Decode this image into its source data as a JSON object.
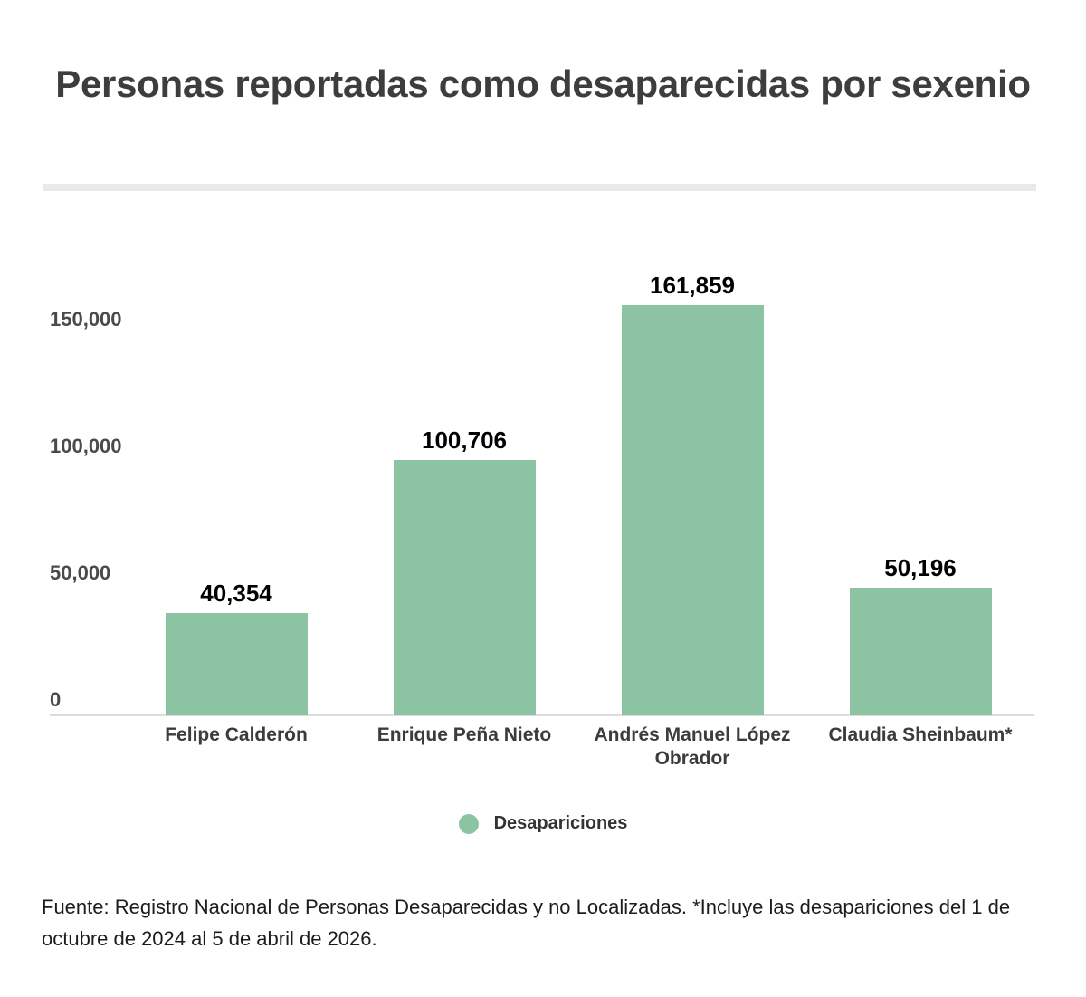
{
  "title": "Personas reportadas como desaparecidas por sexenio",
  "legend": {
    "label": "Desapariciones",
    "marker_color": "#8cc3a3"
  },
  "footer": {
    "text": "Fuente: Registro Nacional de Personas Desaparecidas y no Localizadas. *Incluye las desapariciones del 1 de octubre de 2024 al 5 de abril de 2026."
  },
  "colors": {
    "bar": "#8cc3a3",
    "axis_line": "#dcdcdc",
    "divider": "#e9e9e9",
    "title_text": "#3d3d3d",
    "value_label": "#000000",
    "tick_label": "#4a4a4a",
    "category_label": "#3c3c3c"
  },
  "chart_data": {
    "type": "bar",
    "title": "Personas reportadas como desaparecidas por sexenio",
    "categories": [
      "Felipe Calderón",
      "Enrique Peña Nieto",
      "Andrés Manuel López Obrador",
      "Claudia Sheinbaum*"
    ],
    "values": [
      40354,
      100706,
      161859,
      50196
    ],
    "value_labels": [
      "40,354",
      "100,706",
      "161,859",
      "50,196"
    ],
    "series": [
      {
        "name": "Desapariciones",
        "values": [
          40354,
          100706,
          161859,
          50196
        ]
      }
    ],
    "xlabel": "",
    "ylabel": "",
    "ylim": [
      0,
      175000
    ],
    "yticks": [
      0,
      50000,
      100000,
      150000
    ],
    "ytick_labels": [
      "0",
      "50,000",
      "100,000",
      "150,000"
    ],
    "grid": false,
    "legend_position": "bottom",
    "bar_color": "#8cc3a3"
  }
}
